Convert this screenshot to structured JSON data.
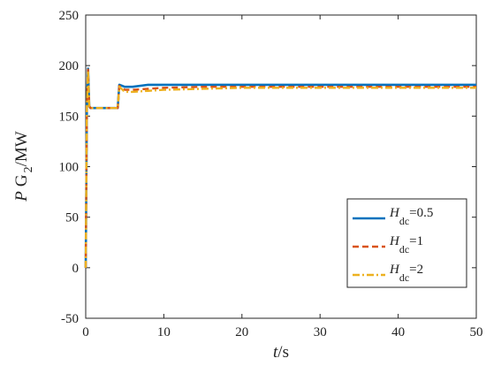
{
  "chart_data": {
    "type": "line",
    "xlabel_var": "t",
    "xlabel_unit": "/s",
    "ylabel_main": "P",
    "ylabel_g": "G",
    "ylabel_sub": "2",
    "ylabel_unit": "/MW",
    "xlim": [
      0,
      50
    ],
    "ylim": [
      -50,
      250
    ],
    "xticks": [
      "0",
      "10",
      "20",
      "30",
      "40",
      "50"
    ],
    "yticks": [
      "-50",
      "0",
      "50",
      "100",
      "150",
      "200",
      "250"
    ],
    "legend_position": "lower-right",
    "series": [
      {
        "name": "H_dc=0.5",
        "legend_var": "H",
        "legend_sub": "dc",
        "legend_val": "=0.5",
        "color": "#0072BD",
        "dash": "solid",
        "x": [
          0,
          0.15,
          0.3,
          0.45,
          0.6,
          4.1,
          4.3,
          5,
          6,
          8,
          10,
          20,
          30,
          40,
          50
        ],
        "y": [
          0,
          158,
          197,
          160,
          158,
          158,
          181,
          179,
          179,
          181,
          181,
          181,
          181,
          181,
          181
        ]
      },
      {
        "name": "H_dc=1",
        "legend_var": "H",
        "legend_sub": "dc",
        "legend_val": "=1",
        "color": "#D95319",
        "dash": "dashed",
        "x": [
          0,
          0.15,
          0.3,
          0.45,
          0.6,
          4.1,
          4.3,
          5,
          6,
          8,
          10,
          15,
          20,
          30,
          40,
          50
        ],
        "y": [
          0,
          158,
          196,
          160,
          158,
          158,
          180,
          176,
          176,
          177,
          178,
          179,
          179,
          179,
          179,
          179
        ]
      },
      {
        "name": "H_dc=2",
        "legend_var": "H",
        "legend_sub": "dc",
        "legend_val": "=2",
        "color": "#EDB120",
        "dash": "dashdot",
        "x": [
          0,
          0.15,
          0.3,
          0.45,
          0.6,
          4.1,
          4.3,
          5,
          6,
          8,
          10,
          15,
          20,
          30,
          40,
          50
        ],
        "y": [
          0,
          158,
          195,
          160,
          158,
          158,
          179,
          174,
          174,
          175,
          176,
          177,
          178,
          178,
          178,
          178
        ]
      }
    ]
  }
}
